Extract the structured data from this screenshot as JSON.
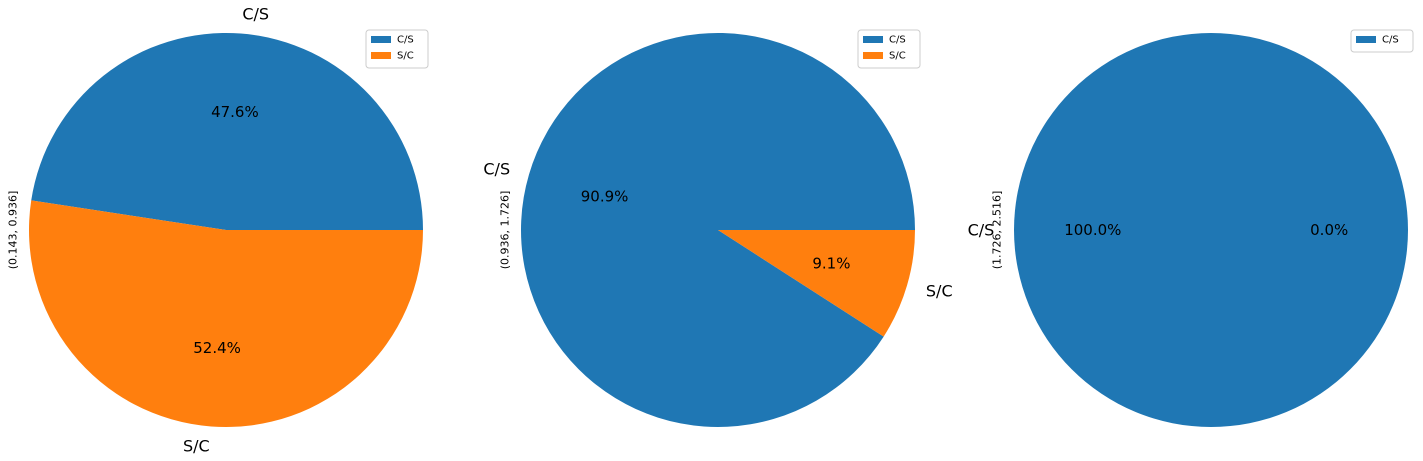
{
  "chart_data": [
    {
      "type": "pie",
      "ylabel": "(0.143, 0.936]",
      "legend": {
        "placement": "top-right",
        "entries": [
          "C/S",
          "S/C"
        ]
      },
      "slices": [
        {
          "label": "C/S",
          "value": 47.6,
          "pct_label": "47.6%",
          "color": "#1f77b4"
        },
        {
          "label": "S/C",
          "value": 52.4,
          "pct_label": "52.4%",
          "color": "#ff7f0e"
        }
      ]
    },
    {
      "type": "pie",
      "ylabel": "(0.936, 1.726]",
      "legend": {
        "placement": "top-right",
        "entries": [
          "C/S",
          "S/C"
        ]
      },
      "slices": [
        {
          "label": "C/S",
          "value": 90.9,
          "pct_label": "90.9%",
          "color": "#1f77b4"
        },
        {
          "label": "S/C",
          "value": 9.1,
          "pct_label": "9.1%",
          "color": "#ff7f0e"
        }
      ]
    },
    {
      "type": "pie",
      "ylabel": "(1.726, 2.516]",
      "legend": {
        "placement": "top-right",
        "entries": [
          "C/S"
        ]
      },
      "slices": [
        {
          "label": "C/S",
          "value": 100.0,
          "pct_label": "100.0%",
          "color": "#1f77b4"
        },
        {
          "label": "",
          "value": 0.0,
          "pct_label": "0.0%",
          "color": "#ff7f0e"
        }
      ]
    }
  ]
}
